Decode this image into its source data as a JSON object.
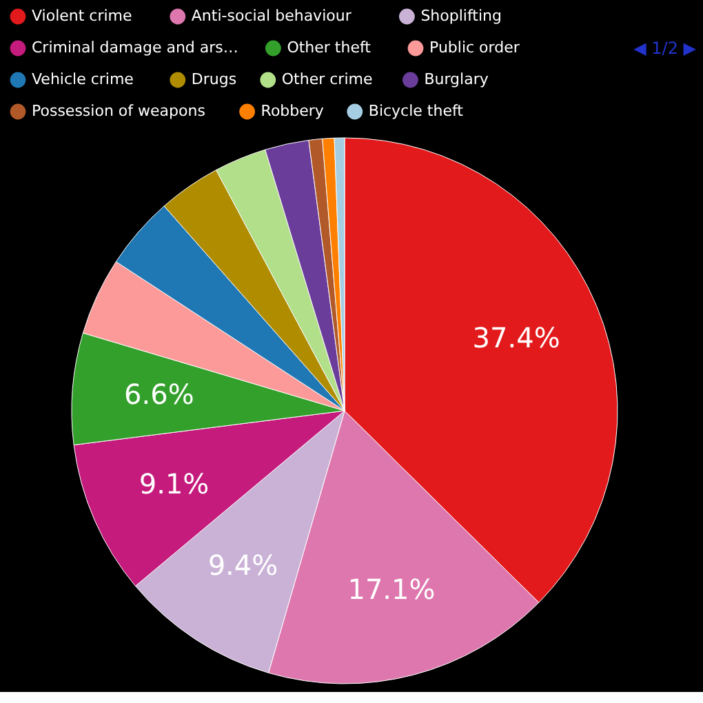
{
  "chart_data": {
    "type": "pie",
    "categories": [
      "Violent crime",
      "Anti-social behaviour",
      "Shoplifting",
      "Criminal damage and ars…",
      "Other theft",
      "Public order",
      "Vehicle crime",
      "Drugs",
      "Other crime",
      "Burglary",
      "Possession of weapons",
      "Robbery",
      "Bicycle theft"
    ],
    "values": [
      37.4,
      17.1,
      9.4,
      9.1,
      6.6,
      4.6,
      4.3,
      3.7,
      3.1,
      2.6,
      0.8,
      0.7,
      0.6
    ],
    "colors": [
      "#e31a1c",
      "#de77ae",
      "#cab2d6",
      "#c51b7d",
      "#33a02c",
      "#fb9a99",
      "#1f78b4",
      "#b08c00",
      "#b2df8a",
      "#6a3d9a",
      "#b15928",
      "#ff7f00",
      "#a6cee3"
    ],
    "value_labels": [
      "37.4%",
      "17.1%",
      "9.4%",
      "9.1%",
      "6.6%",
      null,
      null,
      null,
      null,
      null,
      null,
      null,
      null
    ],
    "legend": "top",
    "annotations": [
      "◀ 1/2 ▶"
    ]
  }
}
